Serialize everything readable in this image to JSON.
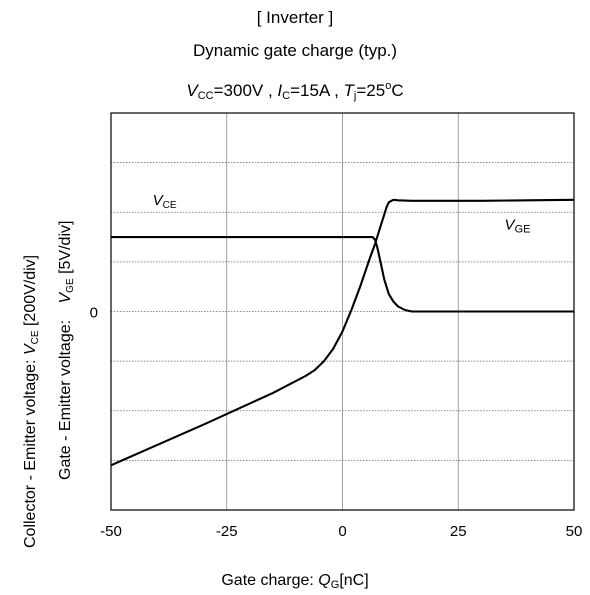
{
  "title_lines": {
    "line1": "[ Inverter ]",
    "line2": "Dynamic gate charge  (typ.)",
    "cond": {
      "vcc_sym": "V",
      "vcc_sub": "CC",
      "vcc_val": "=300V , ",
      "ic_sym": "I",
      "ic_sub": "C",
      "ic_val": "=15A , ",
      "tj_sym": "T",
      "tj_sub": "j",
      "tj_val": "=25",
      "deg": "o",
      "unit": "C"
    }
  },
  "chart_data": {
    "type": "line",
    "x_axis": {
      "label_prefix": "Gate charge: ",
      "label_sym": "Q",
      "label_sub": "G",
      "label_unit": "[nC]",
      "range": [
        -50,
        50
      ],
      "ticks": [
        -50,
        -25,
        0,
        25,
        50
      ],
      "tick_labels": [
        "-50",
        "-25",
        "0",
        "25",
        "50"
      ]
    },
    "y_axis": {
      "label_vce_prefix": "Collector - Emitter voltage: ",
      "label_vce_sym": "V",
      "label_vce_sub": "CE",
      "label_vce_unit": " [200V/div]",
      "label_vge_prefix": "Gate - Emitter voltage: ",
      "label_vge_sym": "V",
      "label_vge_sub": "GE",
      "label_vge_unit": " [5V/div]",
      "range": [
        -4,
        4
      ],
      "divisions": 8,
      "zero_label": "0"
    },
    "grid": true,
    "series": [
      {
        "name": "VCE",
        "label_sym": "V",
        "label_sub": "CE",
        "x": [
          -50,
          5.5,
          6.5,
          7.0,
          7.5,
          8.2,
          9.0,
          10.0,
          11.0,
          12.0,
          13.5,
          15.0,
          20,
          30,
          40,
          50
        ],
        "y": [
          1.5,
          1.5,
          1.5,
          1.45,
          1.3,
          1.0,
          0.65,
          0.35,
          0.2,
          0.1,
          0.03,
          0.0,
          0.0,
          0.0,
          0.0,
          0.0
        ]
      },
      {
        "name": "VGE",
        "label_sym": "V",
        "label_sub": "GE",
        "x": [
          -50,
          -30,
          -15,
          -8,
          -6,
          -4,
          -2,
          0,
          2,
          4,
          6,
          7,
          8,
          9,
          9.5,
          10,
          11,
          12,
          15,
          20,
          30,
          40,
          50
        ],
        "y": [
          -3.1,
          -2.28,
          -1.64,
          -1.3,
          -1.18,
          -1.0,
          -0.75,
          -0.4,
          0.05,
          0.55,
          1.1,
          1.35,
          1.65,
          1.95,
          2.1,
          2.2,
          2.25,
          2.24,
          2.23,
          2.23,
          2.23,
          2.24,
          2.25
        ]
      }
    ]
  }
}
